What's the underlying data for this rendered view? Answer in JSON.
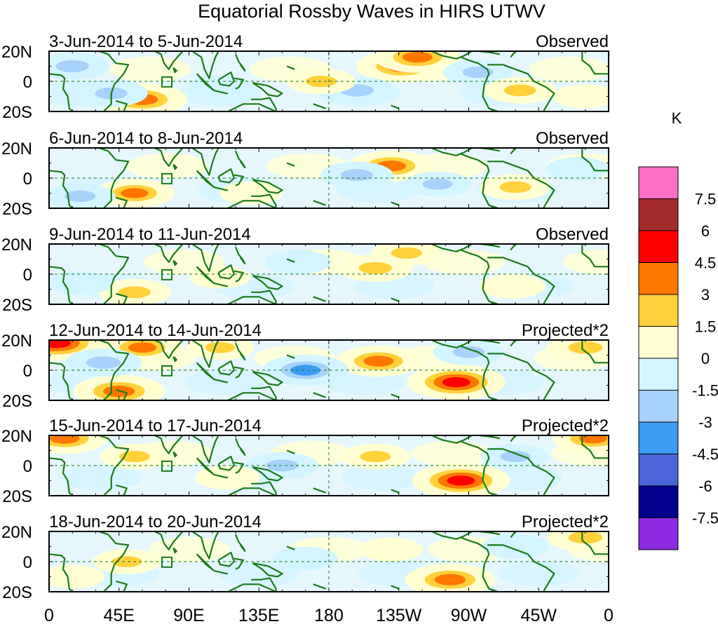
{
  "chart_data": {
    "type": "heatmap",
    "title": "Equatorial Rossby Waves in HIRS UTWV",
    "x_tick_labels": [
      "0",
      "45E",
      "90E",
      "135E",
      "180",
      "135W",
      "90W",
      "45W",
      "0"
    ],
    "y_tick_labels": [
      "20N",
      "0",
      "20S"
    ],
    "x_range_deg_east": [
      0,
      360
    ],
    "y_range_deg": [
      -20,
      20
    ],
    "colorbar": {
      "unit": "K",
      "tick_labels": [
        "7.5",
        "6",
        "4.5",
        "3",
        "1.5",
        "0",
        "-1.5",
        "-3",
        "-4.5",
        "-6",
        "-7.5"
      ],
      "colors": [
        "#ff6ec7",
        "#a52a2a",
        "#ff0000",
        "#ff7700",
        "#ffd23c",
        "#ffffd2",
        "#d2f5ff",
        "#a7d2fb",
        "#3c9cf5",
        "#4965d9",
        "#00008b",
        "#8c2be2"
      ]
    },
    "panels": [
      {
        "period": "3-Jun-2014 to 5-Jun-2014",
        "label": "Observed",
        "anomalies": [
          {
            "lon": 227,
            "lat": 10,
            "value": 5.2
          },
          {
            "lon": 237,
            "lat": 16,
            "value": 4.6
          },
          {
            "lon": 60,
            "lat": -12,
            "value": 5.0
          },
          {
            "lon": 198,
            "lat": -6,
            "value": -3.4
          },
          {
            "lon": 15,
            "lat": 10,
            "value": -3.2
          },
          {
            "lon": 40,
            "lat": -8,
            "value": -3.0
          },
          {
            "lon": 276,
            "lat": 6,
            "value": -2.6
          },
          {
            "lon": 303,
            "lat": -6,
            "value": 2.9
          },
          {
            "lon": 345,
            "lat": -10,
            "value": 2.0
          },
          {
            "lon": 175,
            "lat": 0,
            "value": 2.6
          },
          {
            "lon": 110,
            "lat": -4,
            "value": -2.2
          }
        ]
      },
      {
        "period": "6-Jun-2014 to 8-Jun-2014",
        "label": "Observed",
        "anomalies": [
          {
            "lon": 220,
            "lat": 8,
            "value": 4.6
          },
          {
            "lon": 55,
            "lat": -10,
            "value": 3.8
          },
          {
            "lon": 198,
            "lat": 2,
            "value": -3.0
          },
          {
            "lon": 20,
            "lat": -12,
            "value": -2.6
          },
          {
            "lon": 300,
            "lat": -6,
            "value": 2.8
          },
          {
            "lon": 250,
            "lat": -4,
            "value": -2.4
          },
          {
            "lon": 130,
            "lat": -10,
            "value": 1.8
          },
          {
            "lon": 340,
            "lat": 6,
            "value": -2.0
          }
        ]
      },
      {
        "period": "9-Jun-2014 to 11-Jun-2014",
        "label": "Observed",
        "anomalies": [
          {
            "lon": 210,
            "lat": 4,
            "value": 3.2
          },
          {
            "lon": 230,
            "lat": 14,
            "value": 2.6
          },
          {
            "lon": 55,
            "lat": -12,
            "value": 3.0
          },
          {
            "lon": 160,
            "lat": 8,
            "value": -2.2
          },
          {
            "lon": 298,
            "lat": -8,
            "value": 2.2
          },
          {
            "lon": 20,
            "lat": -6,
            "value": -2.0
          },
          {
            "lon": 110,
            "lat": -2,
            "value": 1.6
          }
        ]
      },
      {
        "period": "12-Jun-2014 to 14-Jun-2014",
        "label": "Projected*2",
        "anomalies": [
          {
            "lon": 5,
            "lat": 18,
            "value": 6.0
          },
          {
            "lon": 60,
            "lat": 15,
            "value": 4.0
          },
          {
            "lon": 45,
            "lat": -14,
            "value": 5.2
          },
          {
            "lon": 262,
            "lat": -8,
            "value": 6.0
          },
          {
            "lon": 212,
            "lat": 6,
            "value": 4.6
          },
          {
            "lon": 165,
            "lat": 0,
            "value": -4.6
          },
          {
            "lon": 35,
            "lat": 5,
            "value": -3.5
          },
          {
            "lon": 345,
            "lat": 15,
            "value": 3.5
          },
          {
            "lon": 270,
            "lat": 12,
            "value": -2.8
          },
          {
            "lon": 110,
            "lat": 15,
            "value": 2.4
          }
        ]
      },
      {
        "period": "15-Jun-2014 to 17-Jun-2014",
        "label": "Projected*2",
        "anomalies": [
          {
            "lon": 265,
            "lat": -10,
            "value": 6.0
          },
          {
            "lon": 10,
            "lat": 18,
            "value": 4.5
          },
          {
            "lon": 350,
            "lat": 18,
            "value": 4.0
          },
          {
            "lon": 55,
            "lat": 6,
            "value": 2.6
          },
          {
            "lon": 210,
            "lat": 6,
            "value": 2.6
          },
          {
            "lon": 150,
            "lat": 0,
            "value": -3.0
          },
          {
            "lon": 300,
            "lat": 6,
            "value": -2.4
          },
          {
            "lon": 115,
            "lat": -8,
            "value": 2.0
          }
        ]
      },
      {
        "period": "18-Jun-2014 to 20-Jun-2014",
        "label": "Projected*2",
        "anomalies": [
          {
            "lon": 258,
            "lat": -12,
            "value": 5.0
          },
          {
            "lon": 50,
            "lat": 0,
            "value": 2.4
          },
          {
            "lon": 220,
            "lat": 8,
            "value": 2.0
          },
          {
            "lon": 345,
            "lat": 16,
            "value": 3.4
          },
          {
            "lon": 165,
            "lat": 2,
            "value": -2.0
          },
          {
            "lon": 300,
            "lat": 10,
            "value": -2.2
          },
          {
            "lon": 15,
            "lat": -10,
            "value": 2.0
          }
        ]
      }
    ]
  }
}
